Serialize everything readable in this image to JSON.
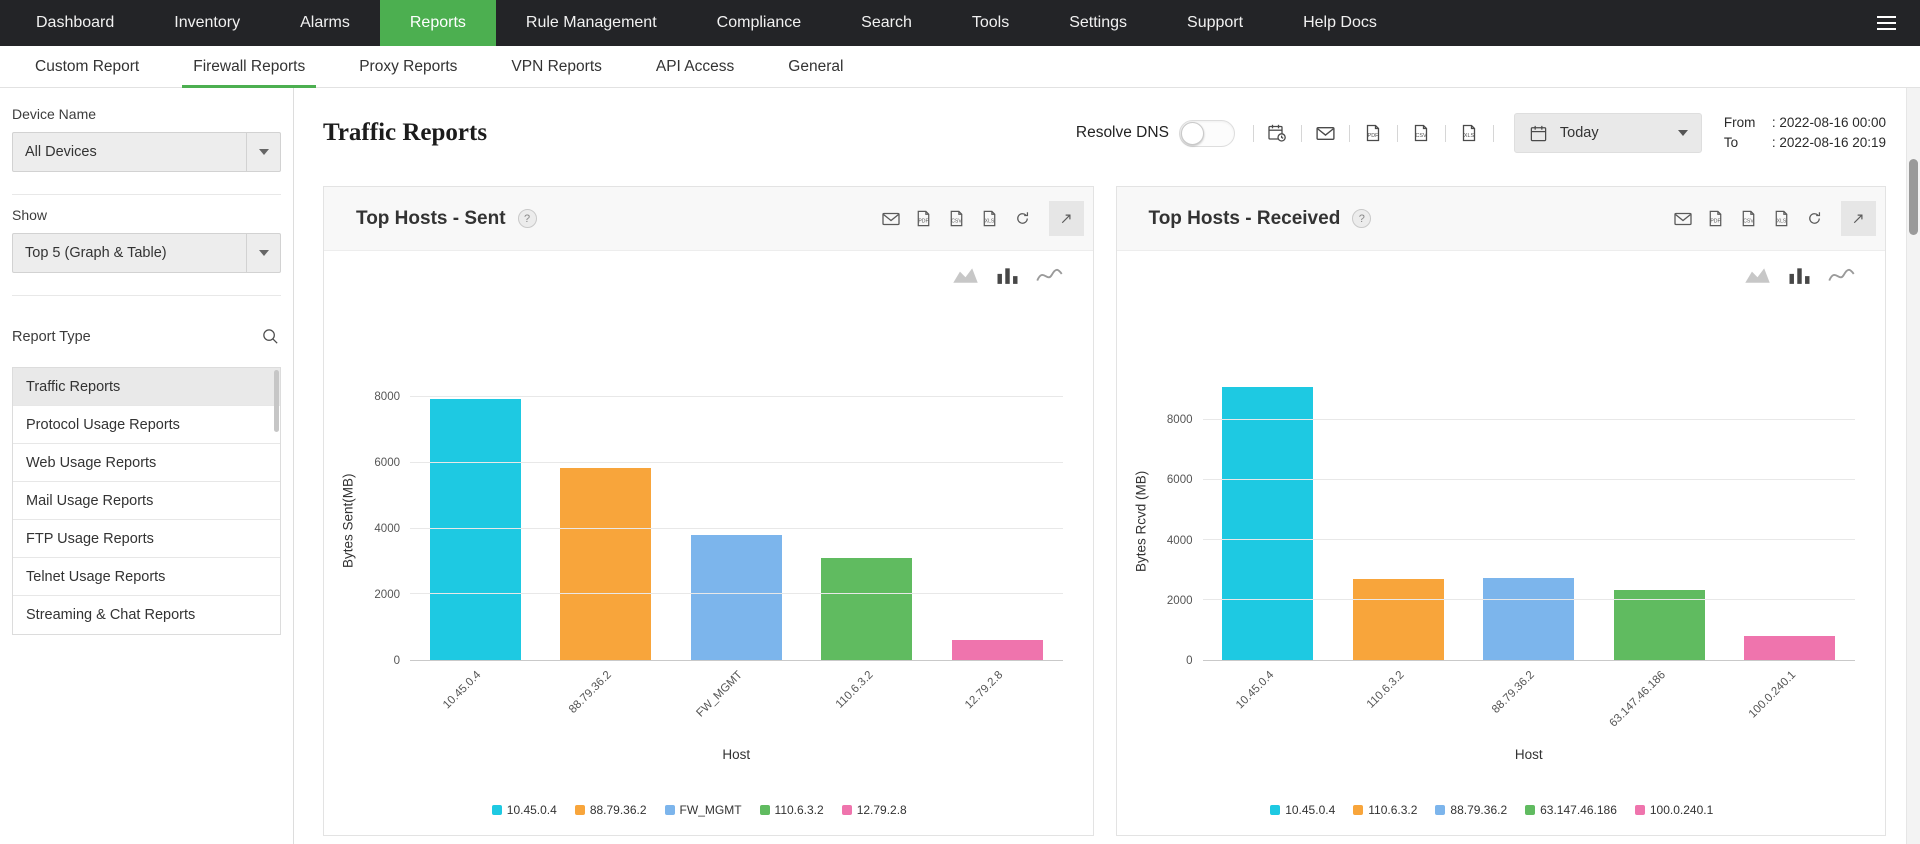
{
  "topnav": {
    "items": [
      "Dashboard",
      "Inventory",
      "Alarms",
      "Reports",
      "Rule Management",
      "Compliance",
      "Search",
      "Tools",
      "Settings",
      "Support",
      "Help Docs"
    ],
    "active": "Reports",
    "accent_color": "#4caf50",
    "menu_icon": "hamburger-icon"
  },
  "tabs": {
    "items": [
      "Custom Report",
      "Firewall Reports",
      "Proxy Reports",
      "VPN Reports",
      "API Access",
      "General"
    ],
    "active": "Firewall Reports"
  },
  "sidebar": {
    "device": {
      "label": "Device Name",
      "value": "All Devices"
    },
    "show": {
      "label": "Show",
      "value": "Top 5 (Graph & Table)"
    },
    "report_type": {
      "label": "Report Type",
      "search_icon": "search-icon",
      "items": [
        "Traffic Reports",
        "Protocol Usage Reports",
        "Web Usage Reports",
        "Mail Usage Reports",
        "FTP Usage Reports",
        "Telnet Usage Reports",
        "Streaming & Chat Reports"
      ],
      "selected": "Traffic Reports"
    }
  },
  "header": {
    "title": "Traffic Reports",
    "resolve_dns": {
      "label": "Resolve DNS",
      "enabled": false
    },
    "export_icons": [
      "schedule-icon",
      "mail-icon",
      "pdf-icon",
      "csv-icon",
      "xls-icon"
    ],
    "date_picker": {
      "icon": "calendar-icon",
      "value": "Today"
    },
    "range": {
      "from_label": "From",
      "from_value": ": 2022-08-16 00:00",
      "to_label": "To",
      "to_value": ": 2022-08-16 20:19"
    }
  },
  "panels": {
    "help_label": "?",
    "action_icons": [
      "mail-icon",
      "pdf-icon",
      "csv-icon",
      "xls-icon",
      "refresh-icon",
      "expand-icon"
    ],
    "chart_type_icons": [
      "area-chart-icon",
      "bar-chart-icon",
      "line-chart-icon"
    ],
    "active_chart_type": "bar-chart-icon"
  },
  "chart_data": [
    {
      "type": "bar",
      "title": "Top Hosts - Sent",
      "categories": [
        "10.45.0.4",
        "88.79.36.2",
        "FW_MGMT",
        "110.6.3.2",
        "12.79.2.8"
      ],
      "values": [
        7950,
        5850,
        3800,
        3100,
        620
      ],
      "bar_colors": [
        "#1ec9e2",
        "#f8a53b",
        "#7cb5ec",
        "#60bb60",
        "#ef74ad"
      ],
      "xlabel": "Host",
      "ylabel": "Bytes Sent(MB)",
      "ylim": [
        0,
        8500
      ],
      "yticks": [
        0,
        2000,
        4000,
        6000,
        8000
      ],
      "grid": true,
      "legend_position": "bottom"
    },
    {
      "type": "bar",
      "title": "Top Hosts - Received",
      "categories": [
        "10.45.0.4",
        "110.6.3.2",
        "88.79.36.2",
        "63.147.46.186",
        "100.0.240.1"
      ],
      "values": [
        9100,
        2700,
        2750,
        2350,
        800
      ],
      "bar_colors": [
        "#1ec9e2",
        "#f8a53b",
        "#7cb5ec",
        "#60bb60",
        "#ef74ad"
      ],
      "xlabel": "Host",
      "ylabel": "Bytes Rcvd (MB)",
      "ylim": [
        0,
        9300
      ],
      "yticks": [
        0,
        2000,
        4000,
        6000,
        8000
      ],
      "grid": true,
      "legend_position": "bottom"
    }
  ]
}
